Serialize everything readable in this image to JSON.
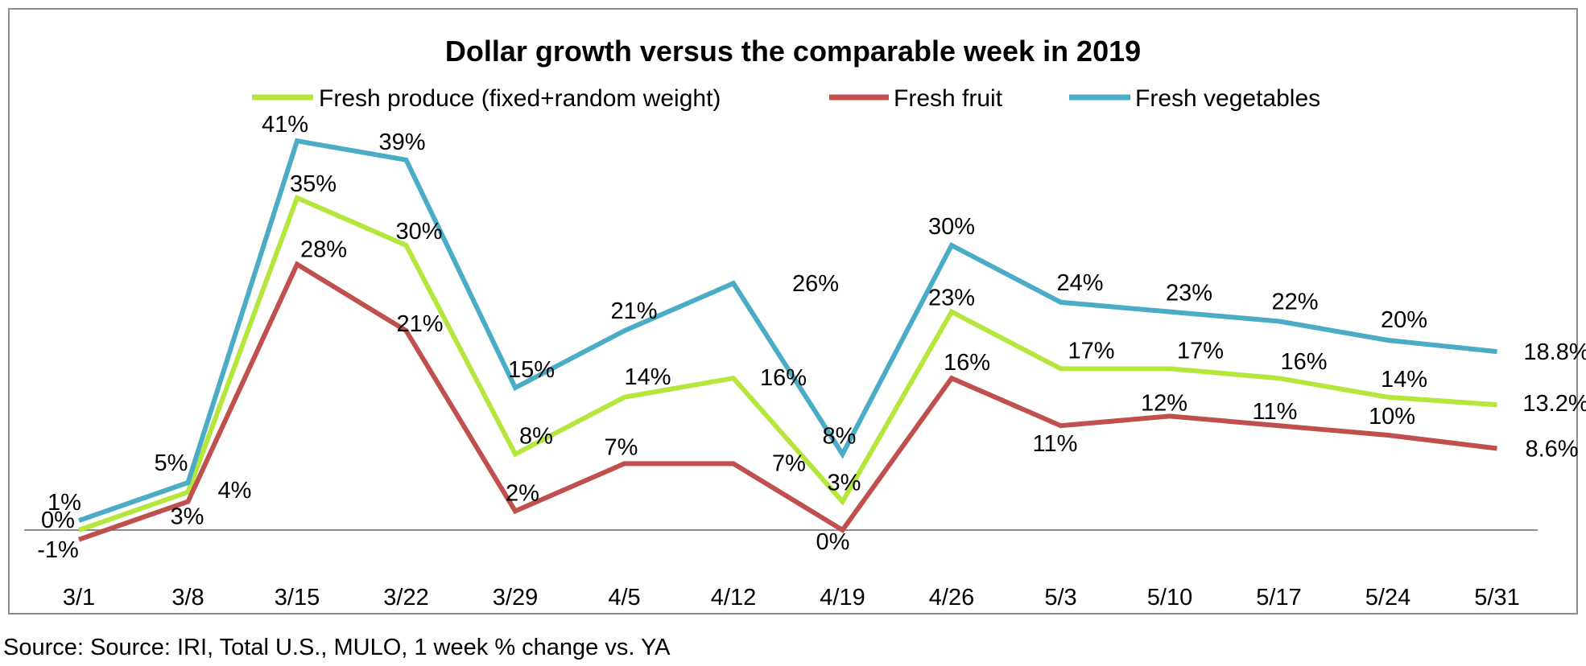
{
  "source_note": "Source: Source: IRI, Total U.S., MULO, 1 week % change vs. YA",
  "chart_data": {
    "type": "line",
    "title": "Dollar growth versus the comparable week in 2019",
    "xlabel": "",
    "ylabel": "",
    "categories": [
      "3/1",
      "3/8",
      "3/15",
      "3/22",
      "3/29",
      "4/5",
      "4/12",
      "4/19",
      "4/26",
      "5/3",
      "5/10",
      "5/17",
      "5/24",
      "5/31"
    ],
    "ylim": [
      -2,
      46
    ],
    "grid": false,
    "legend_position": "top-center",
    "series": [
      {
        "name": "Fresh produce (fixed+random weight)",
        "color": "#b5e63c",
        "values": [
          0,
          4,
          35,
          30,
          8,
          14,
          16,
          3,
          23,
          17,
          17,
          16,
          14,
          13.2
        ],
        "labels": [
          "0%",
          "4%",
          "35%",
          "30%",
          "8%",
          "14%",
          "16%",
          "3%",
          "23%",
          "17%",
          "17%",
          "16%",
          "14%",
          "13.2%"
        ]
      },
      {
        "name": "Fresh fruit",
        "color": "#c0504d",
        "values": [
          -1,
          3,
          28,
          21,
          2,
          7,
          7,
          0,
          16,
          11,
          12,
          11,
          10,
          8.6
        ],
        "labels": [
          "-1%",
          "3%",
          "28%",
          "21%",
          "2%",
          "7%",
          "7%",
          "0%",
          "16%",
          "11%",
          "12%",
          "11%",
          "10%",
          "8.6%"
        ]
      },
      {
        "name": "Fresh vegetables",
        "color": "#4bacc6",
        "values": [
          1,
          5,
          41,
          39,
          15,
          21,
          26,
          8,
          30,
          24,
          23,
          22,
          20,
          18.8
        ],
        "labels": [
          "1%",
          "5%",
          "41%",
          "39%",
          "15%",
          "21%",
          "26%",
          "8%",
          "30%",
          "24%",
          "23%",
          "22%",
          "20%",
          "18.8%"
        ]
      }
    ]
  }
}
